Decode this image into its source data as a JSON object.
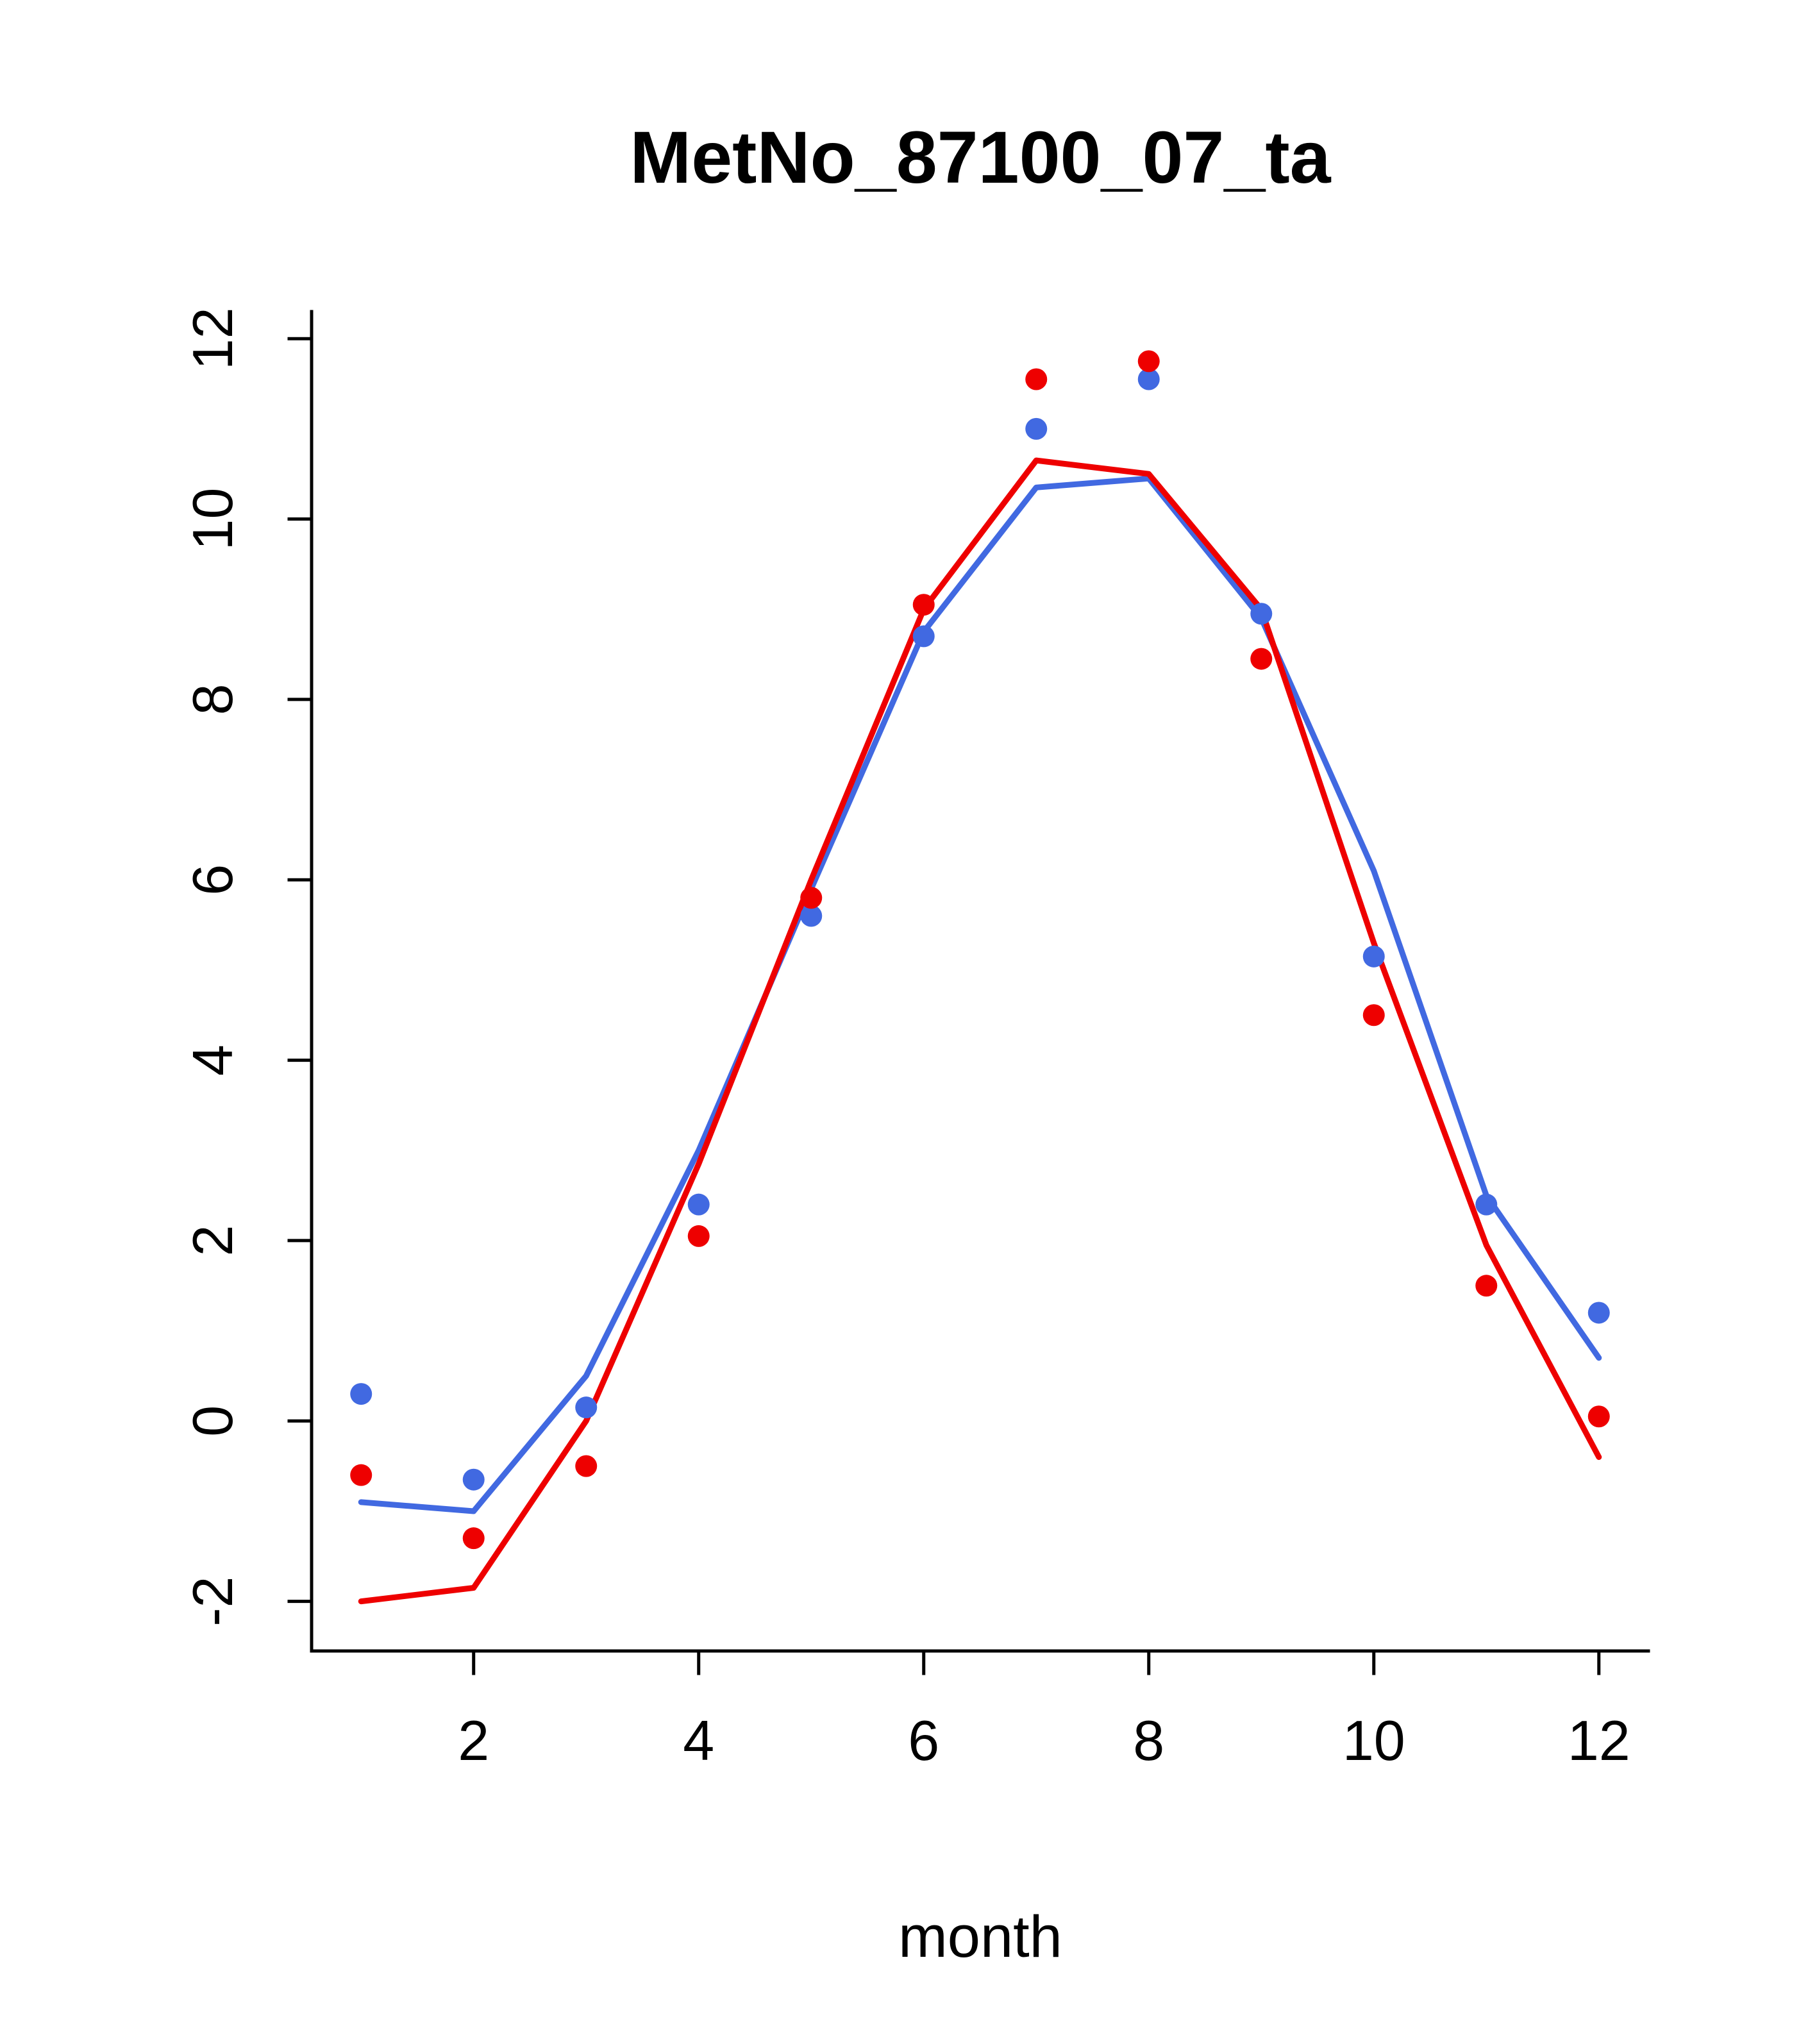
{
  "chart_data": {
    "type": "line",
    "title": "MetNo_87100_07_ta",
    "xlabel": "month",
    "ylabel": "",
    "grid": false,
    "legend": "none",
    "x": [
      1,
      2,
      3,
      4,
      5,
      6,
      7,
      8,
      9,
      10,
      11,
      12
    ],
    "xticks": [
      2,
      4,
      6,
      8,
      10,
      12
    ],
    "yticks": [
      -2,
      0,
      2,
      4,
      6,
      8,
      10,
      12
    ],
    "xlim": [
      0.56,
      12.44
    ],
    "ylim": [
      -2.55,
      12.3
    ],
    "colors": {
      "blue": "#4169E1",
      "red": "#EE0000"
    },
    "series": [
      {
        "name": "blue-line",
        "type": "line",
        "color": "blue",
        "values": [
          -0.9,
          -1.0,
          0.5,
          3.0,
          5.9,
          8.75,
          10.35,
          10.45,
          8.9,
          6.1,
          2.5,
          0.7
        ]
      },
      {
        "name": "red-line",
        "type": "line",
        "color": "red",
        "values": [
          -2.0,
          -1.85,
          0.0,
          2.85,
          6.0,
          9.0,
          10.65,
          10.5,
          9.0,
          5.3,
          1.95,
          -0.4
        ]
      },
      {
        "name": "blue-points",
        "type": "points",
        "color": "blue",
        "values": [
          0.3,
          -0.65,
          0.15,
          2.4,
          5.6,
          8.7,
          11.0,
          11.55,
          8.95,
          5.15,
          2.4,
          1.2
        ]
      },
      {
        "name": "red-points",
        "type": "points",
        "color": "red",
        "values": [
          -0.6,
          -1.3,
          -0.5,
          2.05,
          5.8,
          9.05,
          11.55,
          11.75,
          8.45,
          4.5,
          1.5,
          0.05
        ]
      }
    ]
  }
}
